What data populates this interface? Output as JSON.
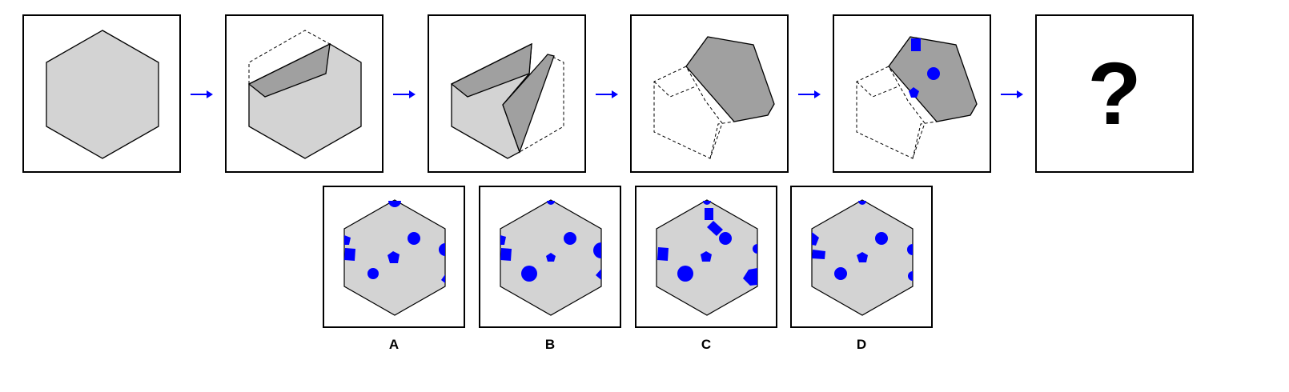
{
  "colors": {
    "paper": "#d3d3d3",
    "fold": "#a0a0a0",
    "marker": "#0000ff",
    "arrow": "#0000ff",
    "outline": "#000000"
  },
  "sequence": {
    "step_count": 6,
    "question_mark": "?",
    "holes_in_final_step": [
      "square",
      "circle",
      "pentagon"
    ]
  },
  "options": [
    {
      "label": "A",
      "holes": [
        "semicircle",
        "pentagon",
        "square",
        "circle",
        "pentagon",
        "circle",
        "semicircle",
        "triangle"
      ]
    },
    {
      "label": "B",
      "holes": [
        "semicircle",
        "pentagon",
        "square",
        "circle",
        "pentagon",
        "circle",
        "semicircle",
        "triangle"
      ]
    },
    {
      "label": "C",
      "holes": [
        "semicircle",
        "square",
        "square",
        "circle",
        "square",
        "pentagon",
        "circle",
        "semicircle",
        "pentagon"
      ]
    },
    {
      "label": "D",
      "holes": [
        "semicircle",
        "pentagon",
        "square",
        "circle",
        "pentagon",
        "circle",
        "semicircle",
        "semicircle"
      ]
    }
  ]
}
